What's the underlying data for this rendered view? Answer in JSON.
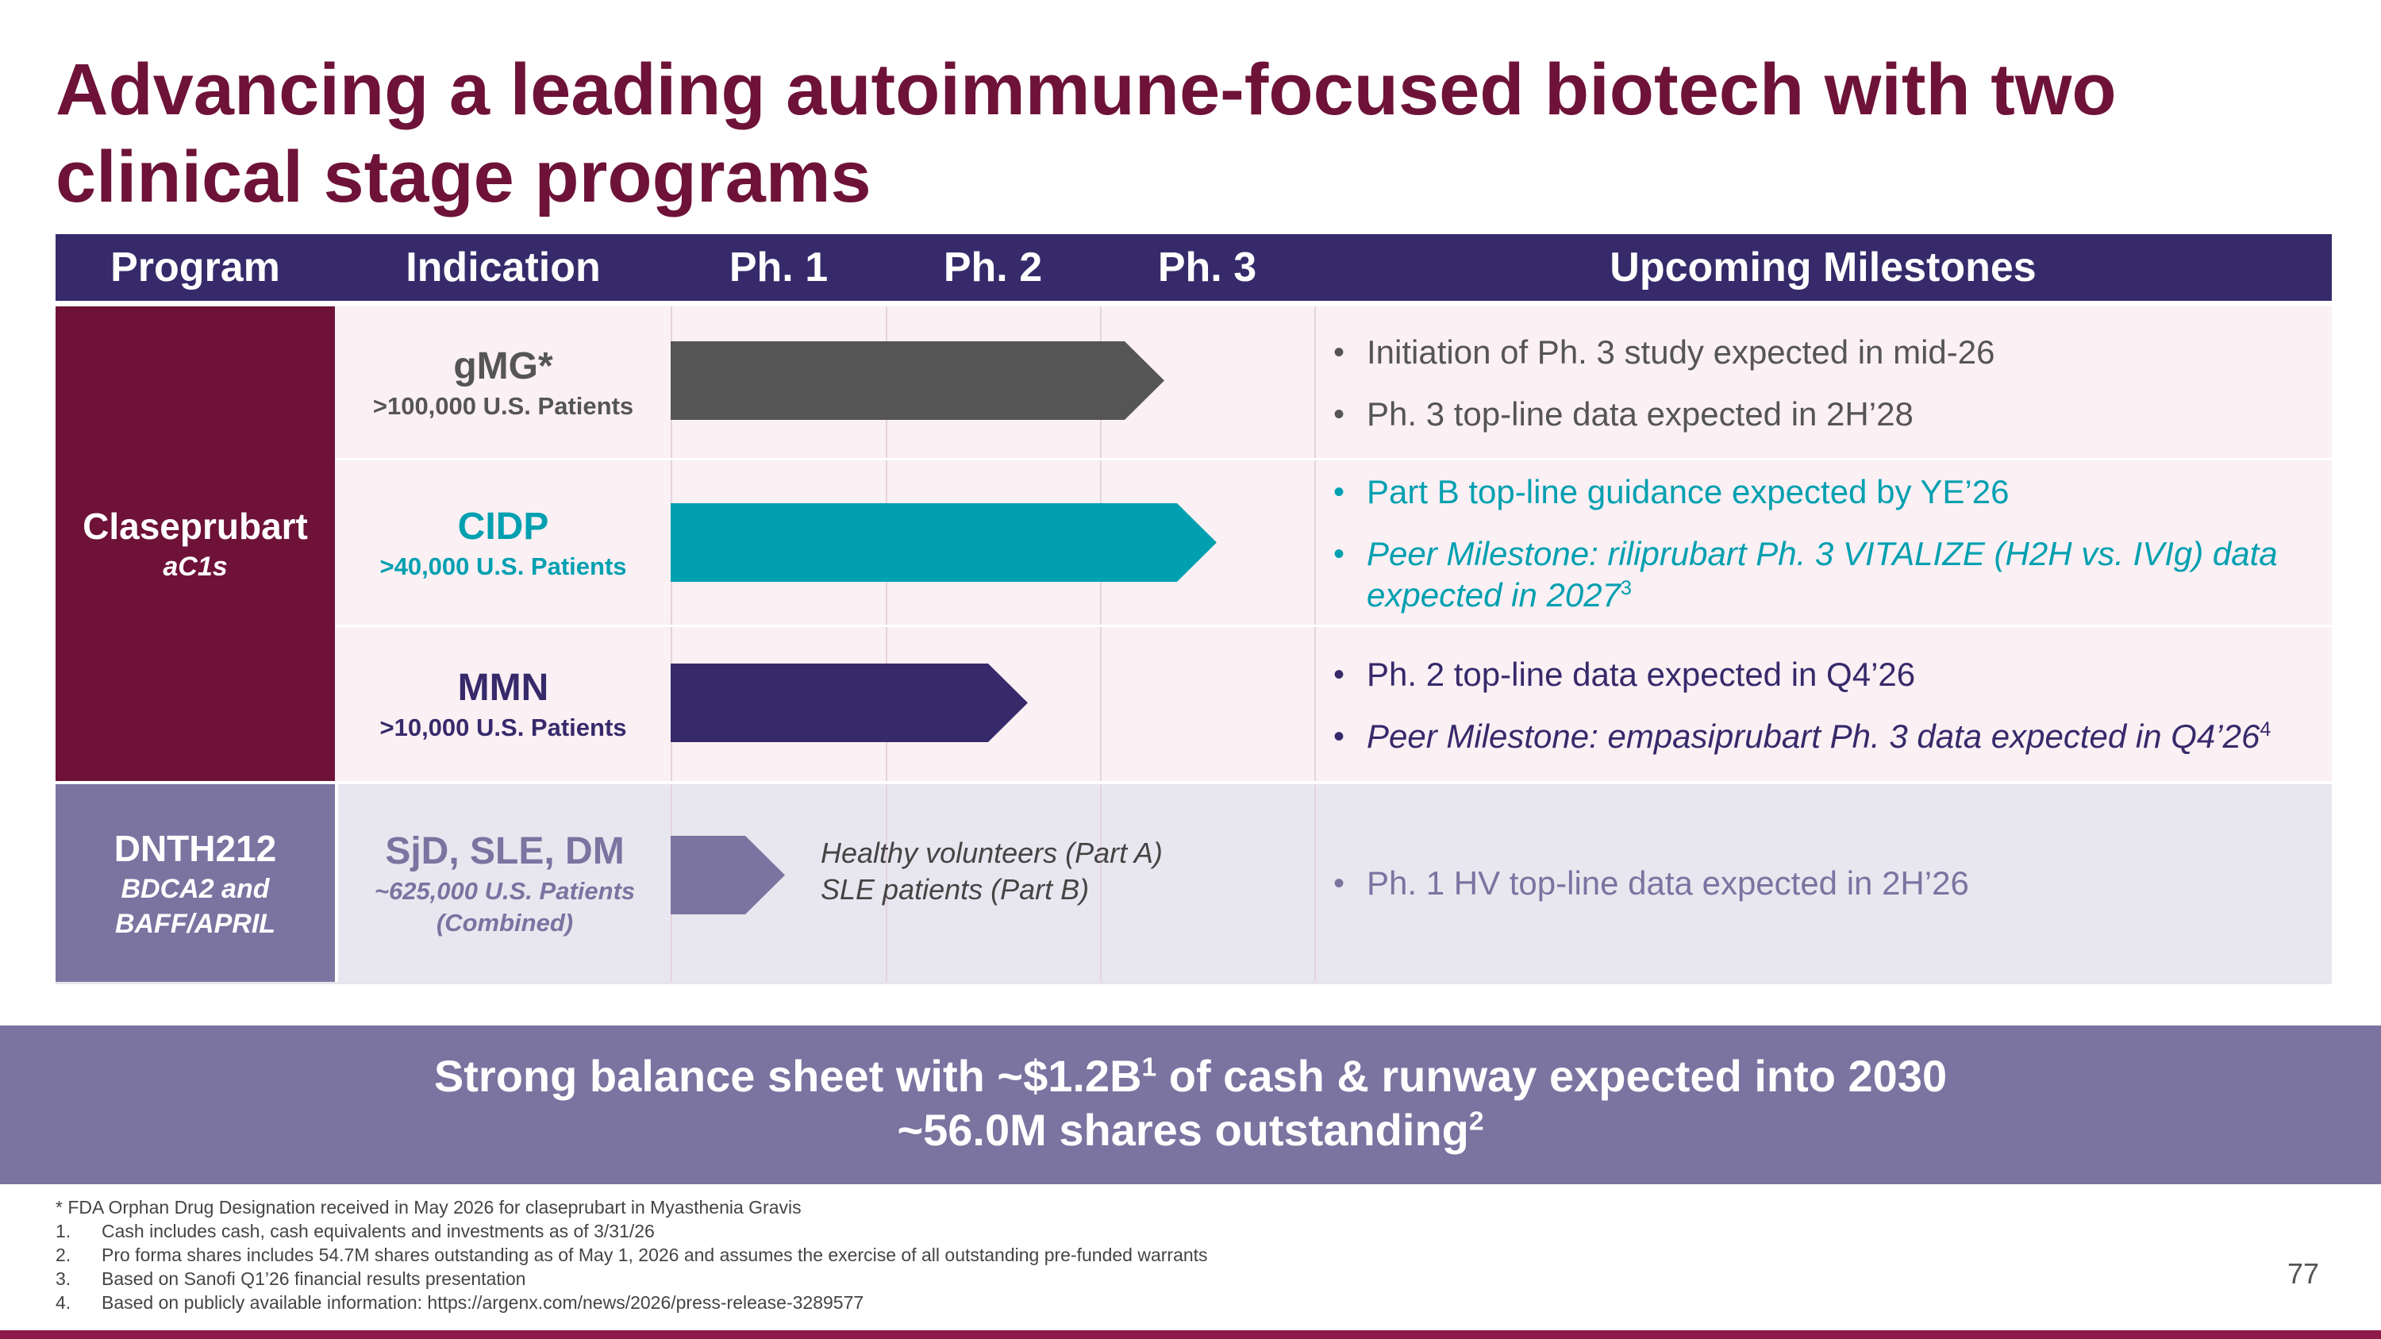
{
  "title": "Advancing a leading autoimmune-focused biotech with two clinical stage programs",
  "header": {
    "program": "Program",
    "indication": "Indication",
    "ph1": "Ph. 1",
    "ph2": "Ph. 2",
    "ph3": "Ph. 3",
    "milestones": "Upcoming Milestones"
  },
  "programs": [
    {
      "name": "Claseprubart",
      "sub": "aC1s"
    },
    {
      "name": "DNTH212",
      "sub": "BDCA2 and BAFF/APRIL"
    }
  ],
  "rows": [
    {
      "indication": "gMG*",
      "patients": ">100,000 U.S. Patients",
      "color": "#555555",
      "progress": "Ph. 3",
      "milestones": [
        {
          "text": "Initiation of Ph. 3 study expected in mid-26",
          "italic": false
        },
        {
          "text": "Ph. 3 top-line data expected in 2H’28",
          "italic": false
        }
      ]
    },
    {
      "indication": "CIDP",
      "patients": ">40,000 U.S. Patients",
      "color": "#00a0b0",
      "progress": "Ph. 3",
      "milestones": [
        {
          "text": "Part B top-line guidance expected by YE’26",
          "italic": false
        },
        {
          "text": "Peer Milestone: riliprubart Ph. 3 VITALIZE (H2H vs. IVIg) data expected in 2027",
          "sup": "3",
          "italic": true
        }
      ]
    },
    {
      "indication": "MMN",
      "patients": ">10,000 U.S. Patients",
      "color": "#362a6b",
      "progress": "Ph. 2",
      "milestones": [
        {
          "text": "Ph. 2 top-line data expected in Q4’26",
          "italic": false
        },
        {
          "text": "Peer Milestone: empasiprubart Ph. 3 data expected in Q4’26",
          "sup": "4",
          "italic": true
        }
      ]
    },
    {
      "indication": "SjD, SLE, DM",
      "patients": "~625,000 U.S. Patients (Combined)",
      "color": "#7b73a0",
      "progress": "Ph. 1",
      "phase_note_1": "Healthy volunteers (Part A)",
      "phase_note_2": "SLE patients (Part B)",
      "milestones": [
        {
          "text": "Ph. 1 HV top-line data expected in 2H’26",
          "italic": false
        }
      ]
    }
  ],
  "banner": {
    "line1_a": "Strong balance sheet with ~$1.2B",
    "line1_sup": "1",
    "line1_b": " of cash & runway expected into 2030",
    "line2_a": "~56.0M shares outstanding",
    "line2_sup": "2"
  },
  "footnotes": {
    "star": "* FDA Orphan Drug Designation received in May 2026 for claseprubart in Myasthenia Gravis",
    "items": [
      {
        "num": "1.",
        "text": "Cash includes cash, cash equivalents and investments as of 3/31/26"
      },
      {
        "num": "2.",
        "text": "Pro forma shares includes 54.7M shares outstanding as of May 1, 2026 and assumes the exercise of all outstanding pre-funded warrants"
      },
      {
        "num": "3.",
        "text": "Based on Sanofi Q1’26 financial results presentation"
      },
      {
        "num": "4.",
        "text": "Based on publicly available information: https://argenx.com/news/2026/press-release-3289577"
      }
    ]
  },
  "page_number": "77",
  "colors": {
    "title": "#6e1238",
    "header_bg": "#362a6b",
    "claseprubart_bg": "#6e1238",
    "dnth212_bg": "#7b73a0",
    "row_pink": "#fbf0f4",
    "row_gray": "#e8e7ef",
    "banner_bg": "#7b73a0"
  }
}
